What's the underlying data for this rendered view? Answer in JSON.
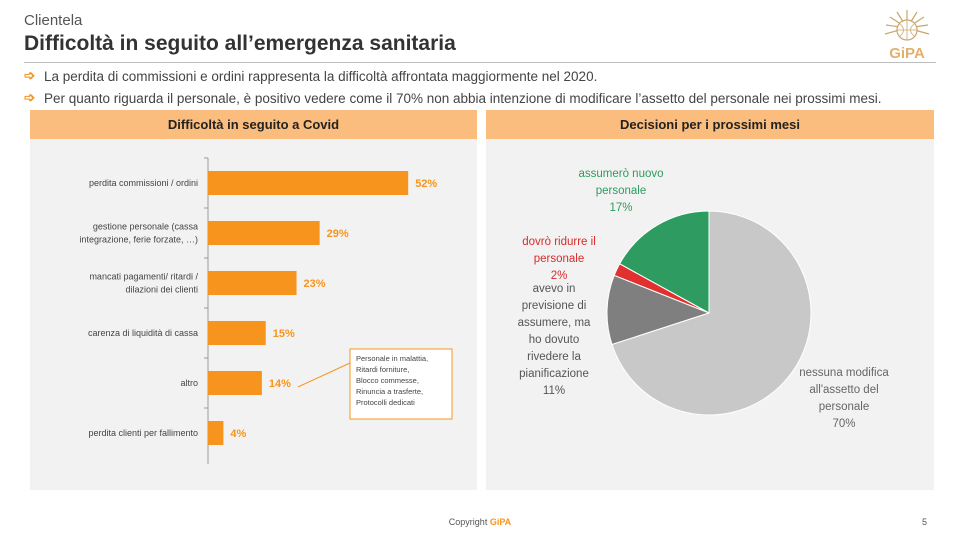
{
  "header": {
    "kicker": "Clientela",
    "title": "Difficoltà in seguito all’emergenza sanitaria",
    "logo_text": "GiPA"
  },
  "bullets": [
    "La perdita di commissioni e ordini rappresenta la difficoltà affrontata maggiormente nel 2020.",
    "Per quanto riguarda il personale, è positivo vedere come il 70% non abbia intenzione di modificare l’assetto del personale nei prossimi mesi."
  ],
  "footer": {
    "copyright": "Copyright",
    "brand": "GiPA",
    "page": "5"
  },
  "colors": {
    "accent": "#f7941d",
    "header_band": "#fbbd7d",
    "panel_bg": "#f2f2f2"
  },
  "chart_data": [
    {
      "type": "bar",
      "orientation": "horizontal",
      "title": "Difficoltà in seguito a Covid",
      "categories": [
        [
          "perdita commissioni / ordini"
        ],
        [
          "gestione personale (cassa",
          "integrazione, ferie forzate, …)"
        ],
        [
          "mancati pagamenti/ ritardi /",
          "dilazioni dei clienti"
        ],
        [
          "carenza di liquidità di cassa"
        ],
        [
          "altro"
        ],
        [
          "perdita clienti per fallimento"
        ]
      ],
      "values": [
        52,
        29,
        23,
        15,
        14,
        4
      ],
      "value_labels": [
        "52%",
        "29%",
        "23%",
        "15%",
        "14%",
        "4%"
      ],
      "xlim": [
        0,
        100
      ],
      "bar_color": "#f7941d",
      "grid": false,
      "annotation": {
        "target": "altro",
        "lines": [
          "Personale in malattia,",
          "Ritardi forniture,",
          "Blocco commesse,",
          "Rinuncia a trasferte,",
          "Protocolli dedicati"
        ]
      }
    },
    {
      "type": "pie",
      "title": "Decisioni per i prossimi mesi",
      "slices": [
        {
          "label": [
            "nessuna modifica",
            "all'assetto del",
            "personale"
          ],
          "value": 70,
          "value_label": "70%",
          "color": "#c8c8c8",
          "text_color": "#666666"
        },
        {
          "label": [
            "avevo in",
            "previsione di",
            "assumere, ma",
            "ho dovuto",
            "rivedere la",
            "pianificazione"
          ],
          "value": 11,
          "value_label": "11%",
          "color": "#7f7f7f",
          "text_color": "#555555"
        },
        {
          "label": [
            "dovrò ridurre il",
            "personale"
          ],
          "value": 2,
          "value_label": "2%",
          "color": "#e03030",
          "text_color": "#d92b2b"
        },
        {
          "label": [
            "assumerò nuovo",
            "personale"
          ],
          "value": 17,
          "value_label": "17%",
          "color": "#2e9c60",
          "text_color": "#2e9c60"
        }
      ]
    }
  ]
}
